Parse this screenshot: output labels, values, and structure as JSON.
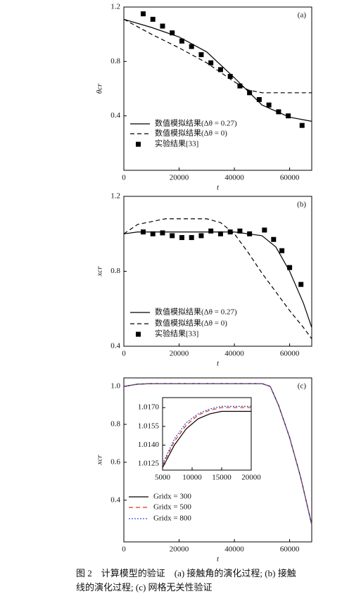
{
  "chart_data": [
    {
      "type": "line",
      "panel_label": "(a)",
      "xlabel": "t",
      "ylabel": "θcr",
      "xlim": [
        0,
        68000
      ],
      "ylim": [
        0,
        1.2
      ],
      "xticks": [
        0,
        20000,
        40000,
        60000
      ],
      "yticks": [
        0.4,
        0.8,
        1.2
      ],
      "series": [
        {
          "name": "数值模拟结果(Δθ = 0.27)",
          "color": "#000000",
          "style": "solid",
          "x": [
            0,
            10000,
            20000,
            30000,
            40000,
            45000,
            50000,
            60000,
            68000
          ],
          "values": [
            1.11,
            1.05,
            0.98,
            0.87,
            0.68,
            0.58,
            0.48,
            0.39,
            0.36
          ]
        },
        {
          "name": "数值模拟结果(Δθ = 0)",
          "color": "#000000",
          "style": "dashed",
          "x": [
            0,
            10000,
            20000,
            30000,
            40000,
            45000,
            50000,
            68000
          ],
          "values": [
            1.11,
            1.0,
            0.9,
            0.79,
            0.65,
            0.59,
            0.57,
            0.57
          ]
        },
        {
          "name": "实验结果[33]",
          "color": "#000000",
          "style": "markers",
          "x": [
            7000,
            10500,
            14000,
            17500,
            21000,
            24500,
            28000,
            31500,
            35000,
            38500,
            42000,
            45500,
            49000,
            52500,
            56000,
            59500,
            64500
          ],
          "values": [
            1.15,
            1.11,
            1.06,
            1.01,
            0.95,
            0.91,
            0.85,
            0.79,
            0.74,
            0.69,
            0.62,
            0.57,
            0.52,
            0.48,
            0.43,
            0.4,
            0.33
          ]
        }
      ]
    },
    {
      "type": "line",
      "panel_label": "(b)",
      "xlabel": "t",
      "ylabel": "xcr",
      "xlim": [
        0,
        68000
      ],
      "ylim": [
        0.4,
        1.2
      ],
      "xticks": [
        0,
        20000,
        40000,
        60000
      ],
      "yticks": [
        0.4,
        0.8,
        1.2
      ],
      "series": [
        {
          "name": "数值模拟结果(Δθ = 0.27)",
          "color": "#000000",
          "style": "solid",
          "x": [
            0,
            5000,
            40000,
            50000,
            55000,
            60000,
            65000,
            68000
          ],
          "values": [
            1.0,
            1.01,
            1.01,
            0.99,
            0.93,
            0.8,
            0.63,
            0.5
          ]
        },
        {
          "name": "数值模拟结果(Δθ = 0)",
          "color": "#000000",
          "style": "dashed",
          "x": [
            0,
            5000,
            15000,
            30000,
            35000,
            40000,
            45000,
            50000,
            55000,
            60000,
            65000,
            68000
          ],
          "values": [
            1.0,
            1.05,
            1.08,
            1.08,
            1.06,
            1.0,
            0.9,
            0.79,
            0.69,
            0.59,
            0.5,
            0.44
          ]
        },
        {
          "name": "实验结果[33]",
          "color": "#000000",
          "style": "markers",
          "x": [
            7000,
            10500,
            14000,
            17500,
            21000,
            24500,
            28000,
            31500,
            35000,
            38500,
            42000,
            45500,
            50900,
            54200,
            57200,
            60000,
            64100
          ],
          "values": [
            1.01,
            1.0,
            1.005,
            0.99,
            0.98,
            0.98,
            0.99,
            1.015,
            1.0,
            1.01,
            1.015,
            1.0,
            1.02,
            0.97,
            0.91,
            0.82,
            0.73
          ]
        }
      ]
    },
    {
      "type": "line",
      "panel_label": "(c)",
      "xlabel": "t",
      "ylabel": "xcr",
      "xlim": [
        0,
        68000
      ],
      "ylim": [
        0.18,
        1.045
      ],
      "xticks": [
        0,
        20000,
        40000,
        60000
      ],
      "yticks": [
        0.4,
        0.6,
        0.8,
        {
          "value": 1.0,
          "label": "1.0"
        }
      ],
      "series": [
        {
          "name": "Gridx = 300",
          "color": "#000000",
          "style": "solid",
          "x": [
            0,
            5000,
            10000,
            50000,
            53000,
            56000,
            60000,
            64000,
            68000
          ],
          "values": [
            1.0,
            1.012,
            1.015,
            1.015,
            1.0,
            0.9,
            0.73,
            0.52,
            0.27
          ]
        },
        {
          "name": "Gridx = 500",
          "color": "#e03020",
          "style": "dashed",
          "x": [
            0,
            5000,
            10000,
            50000,
            53000,
            56000,
            60000,
            64000,
            68000
          ],
          "values": [
            1.0,
            1.012,
            1.015,
            1.015,
            1.0,
            0.9,
            0.73,
            0.52,
            0.27
          ]
        },
        {
          "name": "Gridx = 800",
          "color": "#3050d0",
          "style": "dotted",
          "x": [
            0,
            5000,
            10000,
            50000,
            53000,
            56000,
            60000,
            64000,
            68000
          ],
          "values": [
            1.0,
            1.012,
            1.015,
            1.015,
            1.0,
            0.9,
            0.73,
            0.52,
            0.27
          ]
        }
      ],
      "inset": {
        "xlim": [
          5000,
          20000
        ],
        "ylim": [
          1.012,
          1.0178
        ],
        "xticks": [
          5000,
          10000,
          15000,
          20000
        ],
        "yticks": [
          1.0125,
          {
            "value": 1.014,
            "label": "1.0140"
          },
          1.0155,
          {
            "value": 1.017,
            "label": "1.0170"
          }
        ],
        "series": [
          {
            "color": "#000000",
            "style": "solid",
            "x": [
              5000,
              7000,
              9000,
              11000,
              13000,
              15000,
              20000
            ],
            "values": [
              1.0122,
              1.014,
              1.0153,
              1.0161,
              1.0165,
              1.0167,
              1.0167
            ]
          },
          {
            "color": "#e03020",
            "style": "dashed",
            "x": [
              5000,
              7000,
              9000,
              11000,
              13000,
              15000,
              20000
            ],
            "values": [
              1.0124,
              1.0143,
              1.0156,
              1.0164,
              1.0168,
              1.017,
              1.017
            ]
          },
          {
            "color": "#3050d0",
            "style": "dotted",
            "x": [
              5000,
              7000,
              9000,
              11000,
              13000,
              15000,
              20000
            ],
            "values": [
              1.0125,
              1.0145,
              1.0158,
              1.0165,
              1.0169,
              1.0171,
              1.0171
            ]
          }
        ]
      }
    }
  ],
  "caption": [
    "图 2　计算模型的验证　(a) 接触角的演化过程; (b) 接触",
    "线的演化过程; (c) 网格无关性验证"
  ]
}
